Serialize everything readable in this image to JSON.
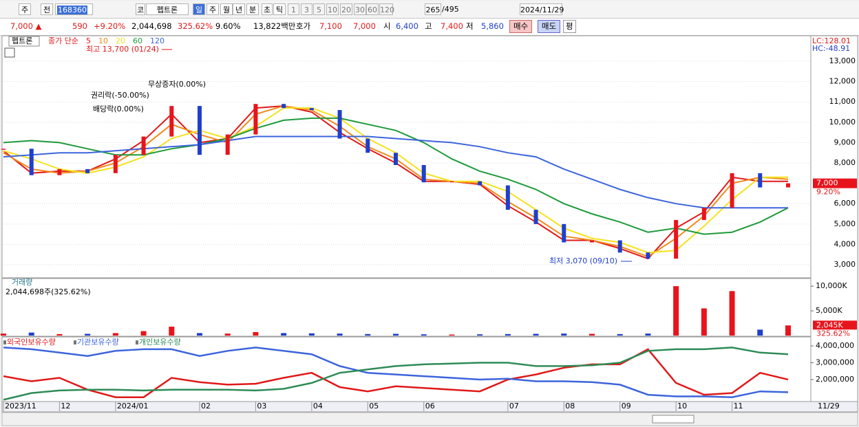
{
  "toolbar": {
    "items": [
      "주",
      "전",
      "168360",
      "코",
      "펩트론",
      "일",
      "주",
      "월",
      "년",
      "분",
      "초",
      "틱",
      "1",
      "3",
      "5",
      "10",
      "20",
      "30",
      "60",
      "120",
      "265",
      "/495",
      "2024/11/29"
    ]
  },
  "info_bar": {
    "items": [
      "7,000 ▲",
      "590",
      "+9.20%",
      "2,044,698",
      "325.62%",
      "9.60%",
      "13,822백만",
      "호가",
      "7,100",
      "7,000",
      "시",
      "6,400",
      "고",
      "7,400",
      "저",
      "5,860",
      "매수",
      "매도",
      "평"
    ]
  },
  "chart_data": [
    {
      "type": "candlestick",
      "title": "펩트론",
      "legend_label": "종가 단순",
      "values": [
        8700,
        7400,
        7700,
        7500,
        8400,
        9300,
        10800,
        8400,
        9400,
        10900,
        10700,
        10600,
        9200,
        8500,
        7900,
        7050,
        7100,
        6900,
        5700,
        5000,
        4100,
        4200,
        3600,
        3300,
        5200,
        5800,
        7500,
        6800,
        7000
      ],
      "up_color": "#e8141c",
      "down_color": "#1f3fcc",
      "series": [
        {
          "name": "5",
          "color": "#e01818",
          "values": [
            8600,
            7500,
            7600,
            7600,
            8200,
            9100,
            10400,
            9000,
            9200,
            10700,
            10800,
            10500,
            9500,
            8700,
            8000,
            7100,
            7100,
            6950,
            5900,
            5100,
            4200,
            4200,
            3800,
            3300,
            4800,
            5600,
            7300,
            7100,
            7100
          ]
        },
        {
          "name": "10",
          "color": "#f08a1c",
          "values": [
            8500,
            7700,
            7500,
            7600,
            8000,
            8800,
            9900,
            9400,
            9000,
            10400,
            10800,
            10600,
            9800,
            8800,
            8200,
            7200,
            7100,
            7000,
            6100,
            5300,
            4400,
            4200,
            3900,
            3400,
            4300,
            5400,
            7000,
            7300,
            7200
          ]
        },
        {
          "name": "20",
          "color": "#f5e21c",
          "values": [
            8600,
            8200,
            7700,
            7500,
            7800,
            8300,
            9200,
            9600,
            9200,
            9800,
            10700,
            10700,
            10200,
            9200,
            8500,
            7500,
            7100,
            7100,
            6600,
            5700,
            4800,
            4300,
            4100,
            3600,
            3700,
            4900,
            6200,
            7300,
            7300
          ]
        },
        {
          "name": "60",
          "color": "#1e9a3c",
          "values": [
            9000,
            9100,
            9000,
            8700,
            8400,
            8400,
            8700,
            8900,
            9200,
            9700,
            10100,
            10200,
            10200,
            9900,
            9600,
            9000,
            8200,
            7600,
            7200,
            6700,
            6000,
            5500,
            5100,
            4600,
            4800,
            4500,
            4600,
            5100,
            5800
          ]
        },
        {
          "name": "120",
          "color": "#3c64dc",
          "values": [
            8300,
            8400,
            8500,
            8500,
            8600,
            8700,
            8800,
            8900,
            9100,
            9300,
            9300,
            9300,
            9300,
            9300,
            9200,
            9100,
            9000,
            8800,
            8500,
            8300,
            7700,
            7200,
            6700,
            6300,
            6000,
            5800,
            5800,
            5800,
            5800
          ]
        }
      ],
      "ylim": [
        2360,
        14250
      ],
      "yticks": [
        {
          "value": 3000,
          "label": "3,000"
        },
        {
          "value": 4000,
          "label": "4,000"
        },
        {
          "value": 5000,
          "label": "5,000"
        },
        {
          "value": 6000,
          "label": "6,000"
        },
        {
          "value": 7000,
          "label": "7,000"
        },
        {
          "value": 8000,
          "label": "8,000"
        },
        {
          "value": 9000,
          "label": "9,000"
        },
        {
          "value": 10000,
          "label": "10,000"
        },
        {
          "value": 11000,
          "label": "11,000"
        },
        {
          "value": 12000,
          "label": "12,000"
        },
        {
          "value": 13000,
          "label": "13,000"
        }
      ],
      "grid": true,
      "annotations": [
        "최고 13,700 (01/24)",
        "최저 3,070 (09/10)",
        "권리락(-50.00%)",
        "배당락(0.00%)",
        "무상증자(0.00%)"
      ],
      "current_label": "7,000",
      "change_label": "9.20%",
      "lc_label": "LC:128.01",
      "hc_label": "HC:-48.91"
    },
    {
      "type": "bar",
      "legend_label": "거래량",
      "info_label": "2,044,698주(325.62%)",
      "color": "#e8141c",
      "down_color": "#1f3fcc",
      "values": [
        400000,
        600000,
        300000,
        350000,
        500000,
        900000,
        1800000,
        500000,
        400000,
        700000,
        500000,
        450000,
        400000,
        300000,
        350000,
        250000,
        200000,
        250000,
        300000,
        350000,
        400000,
        350000,
        300000,
        400000,
        10000000,
        5500000,
        9000000,
        1200000,
        2044698
      ],
      "ylim": [
        0,
        11550000
      ],
      "yticks": [
        {
          "value": 10000000,
          "label": "10,000K"
        },
        {
          "value": 5000000,
          "label": "5,000K"
        }
      ],
      "current_label": "2,045K",
      "change_label": "325.62%"
    },
    {
      "type": "line",
      "categories": [
        "2023/11",
        null,
        "12",
        null,
        "2024/01",
        null,
        null,
        "02",
        null,
        "03",
        null,
        "04",
        null,
        "05",
        null,
        "06",
        null,
        null,
        "07",
        null,
        "08",
        null,
        "09",
        null,
        "10",
        null,
        "11",
        null,
        null
      ],
      "end_label": "11/29",
      "series": [
        {
          "name": "외국인보유수량",
          "color": "#e01818",
          "values": [
            2200000,
            1900000,
            2100000,
            1400000,
            950000,
            950000,
            2100000,
            1850000,
            1700000,
            1750000,
            2100000,
            2400000,
            1550000,
            1300000,
            1600000,
            1500000,
            1400000,
            1300000,
            2000000,
            2300000,
            2700000,
            2900000,
            2900000,
            3800000,
            1800000,
            1100000,
            1200000,
            2400000,
            2000000
          ]
        },
        {
          "name": "기관보유수량",
          "color": "#3c64dc",
          "values": [
            3900000,
            3800000,
            3600000,
            3400000,
            3700000,
            3800000,
            3800000,
            3400000,
            3700000,
            3900000,
            3700000,
            3500000,
            2800000,
            2400000,
            2300000,
            2200000,
            2100000,
            2000000,
            2050000,
            1900000,
            1900000,
            1850000,
            1700000,
            1100000,
            1000000,
            1000000,
            950000,
            1300000,
            1250000
          ]
        },
        {
          "name": "개인보유수량",
          "color": "#2e8b57",
          "values": [
            800000,
            1200000,
            1350000,
            1400000,
            1400000,
            1350000,
            1400000,
            1400000,
            1400000,
            1350000,
            1450000,
            1800000,
            2400000,
            2600000,
            2800000,
            2900000,
            2950000,
            3000000,
            3000000,
            2800000,
            2800000,
            2850000,
            3000000,
            3700000,
            3800000,
            3800000,
            3900000,
            3600000,
            3500000
          ]
        }
      ],
      "ylim": [
        735000,
        4530000
      ],
      "yticks": [
        {
          "value": 4000000,
          "label": "4,000,000"
        },
        {
          "value": 3000000,
          "label": "3,000,000"
        },
        {
          "value": 2000000,
          "label": "2,000,000"
        }
      ]
    }
  ]
}
